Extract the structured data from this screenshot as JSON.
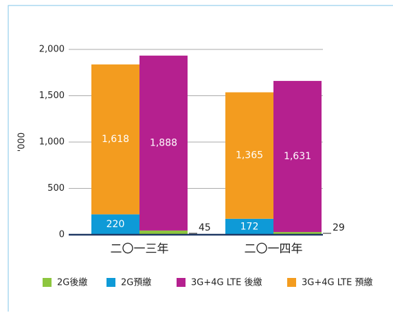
{
  "chart_data": {
    "type": "stacked_bar",
    "ylabel": "'000",
    "categories": [
      "二〇一三年",
      "二〇一四年"
    ],
    "series": [
      {
        "name": "2G後繳",
        "color": "#8dc63f",
        "stack": 1,
        "values": [
          45,
          29
        ],
        "value_labels": [
          "45",
          "29"
        ]
      },
      {
        "name": "2G預繳",
        "color": "#0e9ad7",
        "stack": 0,
        "values": [
          220,
          172
        ],
        "value_labels": [
          "220",
          "172"
        ]
      },
      {
        "name": "3G+4G LTE 後繳",
        "color": "#b5208f",
        "stack": 1,
        "values": [
          1888,
          1631
        ],
        "value_labels": [
          "1,888",
          "1,631"
        ]
      },
      {
        "name": "3G+4G LTE 預繳",
        "color": "#f39c1f",
        "stack": 0,
        "values": [
          1618,
          1365
        ],
        "value_labels": [
          "1,618",
          "1,365"
        ]
      }
    ],
    "ylim": [
      0,
      2000
    ],
    "yticks": [
      0,
      500,
      {
        "value": 1000,
        "label": "1,000"
      },
      {
        "value": 1500,
        "label": "1,500"
      },
      {
        "value": 2000,
        "label": "2,000"
      }
    ],
    "grid": true
  }
}
